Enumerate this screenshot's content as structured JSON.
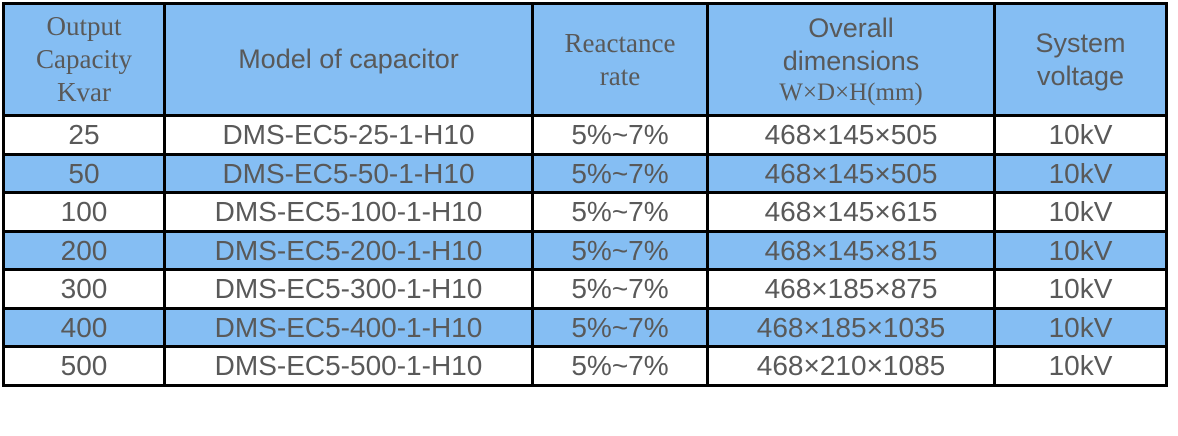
{
  "table": {
    "title_semantic": "capacitor-specifications",
    "columns": {
      "capacity": {
        "label": "Output\nCapacity\nKvar"
      },
      "model": {
        "label": "Model of capacitor"
      },
      "reactance": {
        "label": "Reactance\nrate"
      },
      "dimensions": {
        "label": "Overall\ndimensions",
        "sub_label": "W×D×H(mm)"
      },
      "voltage": {
        "label": "System\nvoltage"
      }
    },
    "rows": [
      {
        "capacity": "25",
        "model": "DMS-EC5-25-1-H10",
        "reactance": "5%~7%",
        "dimensions": "468×145×505",
        "voltage": "10kV"
      },
      {
        "capacity": "50",
        "model": "DMS-EC5-50-1-H10",
        "reactance": "5%~7%",
        "dimensions": "468×145×505",
        "voltage": "10kV"
      },
      {
        "capacity": "100",
        "model": "DMS-EC5-100-1-H10",
        "reactance": "5%~7%",
        "dimensions": "468×145×615",
        "voltage": "10kV"
      },
      {
        "capacity": "200",
        "model": "DMS-EC5-200-1-H10",
        "reactance": "5%~7%",
        "dimensions": "468×145×815",
        "voltage": "10kV"
      },
      {
        "capacity": "300",
        "model": "DMS-EC5-300-1-H10",
        "reactance": "5%~7%",
        "dimensions": "468×185×875",
        "voltage": "10kV"
      },
      {
        "capacity": "400",
        "model": "DMS-EC5-400-1-H10",
        "reactance": "5%~7%",
        "dimensions": "468×185×1035",
        "voltage": "10kV"
      },
      {
        "capacity": "500",
        "model": "DMS-EC5-500-1-H10",
        "reactance": "5%~7%",
        "dimensions": "468×210×1085",
        "voltage": "10kV"
      }
    ],
    "colors": {
      "header_bg": "#85BEF3",
      "alt_row_bg": "#85BEF3",
      "row_bg": "#FFFFFF",
      "border": "#000000",
      "text": "#595959",
      "page_bg": "#FFFFFF"
    }
  }
}
